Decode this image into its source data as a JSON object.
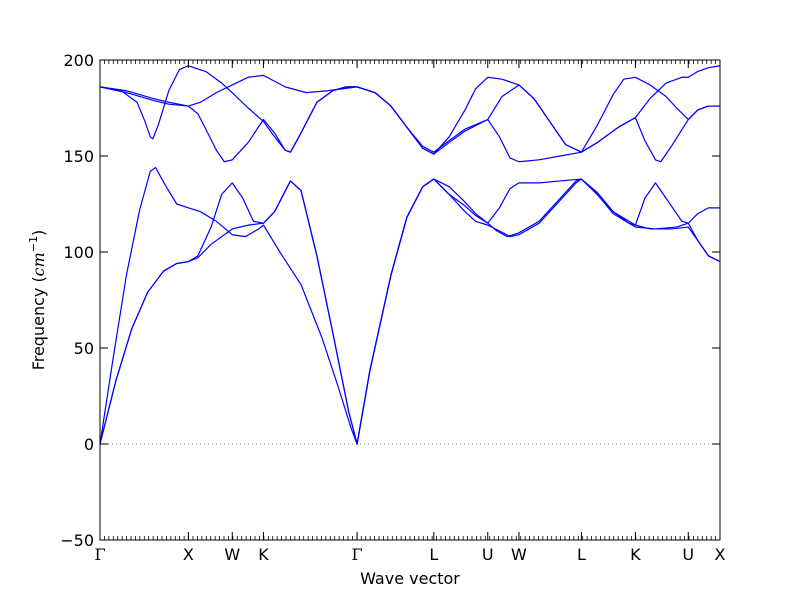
{
  "chart_data": {
    "type": "line",
    "title": "",
    "xlabel": "Wave vector",
    "ylabel_text": "Frequency (",
    "ylabel_unit_base": "cm",
    "ylabel_unit_exp": "−1",
    "ylabel_close": ")",
    "ylim": [
      -50,
      200
    ],
    "yticks": [
      -50,
      0,
      50,
      100,
      150,
      200
    ],
    "ytick_labels": [
      "−50",
      "0",
      "50",
      "100",
      "150",
      "200"
    ],
    "grid": false,
    "zero_line": {
      "y": 0,
      "style": "dotted",
      "color": "#808080"
    },
    "line_color": "#0000ff",
    "x_range": [
      0,
      11.72
    ],
    "high_symmetry_points": [
      {
        "label": "Γ",
        "x": 0.0
      },
      {
        "label": "X",
        "x": 1.67
      },
      {
        "label": "W",
        "x": 2.5
      },
      {
        "label": "K",
        "x": 3.09
      },
      {
        "label": "Γ",
        "x": 4.86
      },
      {
        "label": "L",
        "x": 6.31
      },
      {
        "label": "U",
        "x": 7.33
      },
      {
        "label": "W",
        "x": 7.92
      },
      {
        "label": "L",
        "x": 9.1
      },
      {
        "label": "K",
        "x": 10.12
      },
      {
        "label": "U",
        "x": 11.12
      },
      {
        "label": "X",
        "x": 11.72
      }
    ],
    "minor_tick_count": 140,
    "series": [
      {
        "values": [
          [
            0,
            0
          ],
          [
            0.3,
            33
          ],
          [
            0.6,
            60
          ],
          [
            0.9,
            79
          ],
          [
            1.2,
            90
          ],
          [
            1.45,
            94
          ],
          [
            1.67,
            95
          ],
          [
            1.85,
            97
          ],
          [
            2.1,
            104
          ],
          [
            2.5,
            112
          ],
          [
            2.8,
            114
          ],
          [
            3.09,
            115
          ],
          [
            3.3,
            121
          ],
          [
            3.6,
            137
          ],
          [
            3.8,
            132
          ],
          [
            4.1,
            98
          ],
          [
            4.4,
            58
          ],
          [
            4.7,
            17
          ],
          [
            4.86,
            0
          ],
          [
            5.1,
            38
          ],
          [
            5.5,
            88
          ],
          [
            5.8,
            118
          ],
          [
            6.1,
            134
          ],
          [
            6.31,
            138
          ],
          [
            6.6,
            130
          ],
          [
            6.9,
            124
          ],
          [
            7.1,
            119
          ],
          [
            7.33,
            115
          ],
          [
            7.5,
            111
          ],
          [
            7.7,
            108
          ],
          [
            7.92,
            110
          ],
          [
            8.3,
            116
          ],
          [
            8.7,
            128
          ],
          [
            9.0,
            137
          ],
          [
            9.1,
            138
          ],
          [
            9.4,
            130
          ],
          [
            9.7,
            120
          ],
          [
            10.0,
            115
          ],
          [
            10.12,
            114
          ],
          [
            10.4,
            112
          ],
          [
            10.8,
            112
          ],
          [
            11.12,
            113
          ],
          [
            11.3,
            106
          ],
          [
            11.5,
            98
          ],
          [
            11.72,
            95
          ]
        ]
      },
      {
        "values": [
          [
            0,
            0
          ],
          [
            0.3,
            33
          ],
          [
            0.6,
            60
          ],
          [
            0.9,
            79
          ],
          [
            1.2,
            90
          ],
          [
            1.45,
            94
          ],
          [
            1.67,
            95
          ],
          [
            1.85,
            98
          ],
          [
            2.1,
            113
          ],
          [
            2.3,
            130
          ],
          [
            2.5,
            136
          ],
          [
            2.7,
            128
          ],
          [
            2.9,
            116
          ],
          [
            3.09,
            115
          ],
          [
            3.3,
            121
          ],
          [
            3.6,
            137
          ],
          [
            3.8,
            132
          ],
          [
            4.1,
            98
          ],
          [
            4.4,
            58
          ],
          [
            4.7,
            17
          ],
          [
            4.86,
            0
          ],
          [
            5.1,
            38
          ],
          [
            5.5,
            88
          ],
          [
            5.8,
            118
          ],
          [
            6.1,
            134
          ],
          [
            6.31,
            138
          ],
          [
            6.6,
            134
          ],
          [
            6.9,
            126
          ],
          [
            7.1,
            120
          ],
          [
            7.33,
            115
          ],
          [
            7.55,
            123
          ],
          [
            7.75,
            133
          ],
          [
            7.92,
            136
          ],
          [
            8.3,
            136
          ],
          [
            8.7,
            137
          ],
          [
            9.1,
            138
          ],
          [
            9.4,
            131
          ],
          [
            9.7,
            121
          ],
          [
            10.0,
            116
          ],
          [
            10.12,
            114
          ],
          [
            10.3,
            128
          ],
          [
            10.5,
            136
          ],
          [
            10.7,
            128
          ],
          [
            11.0,
            116
          ],
          [
            11.12,
            115
          ],
          [
            11.3,
            120
          ],
          [
            11.5,
            123
          ],
          [
            11.72,
            123
          ]
        ]
      },
      {
        "values": [
          [
            0,
            0
          ],
          [
            0.25,
            45
          ],
          [
            0.5,
            88
          ],
          [
            0.75,
            122
          ],
          [
            0.95,
            142
          ],
          [
            1.05,
            144
          ],
          [
            1.25,
            134
          ],
          [
            1.45,
            125
          ],
          [
            1.67,
            123
          ],
          [
            1.9,
            121
          ],
          [
            2.2,
            116
          ],
          [
            2.5,
            109
          ],
          [
            2.75,
            108
          ],
          [
            3.0,
            112
          ],
          [
            3.09,
            114
          ],
          [
            3.4,
            100
          ],
          [
            3.8,
            83
          ],
          [
            4.2,
            55
          ],
          [
            4.5,
            30
          ],
          [
            4.75,
            8
          ],
          [
            4.86,
            0
          ],
          [
            5.1,
            38
          ],
          [
            5.5,
            88
          ],
          [
            5.8,
            118
          ],
          [
            6.1,
            134
          ],
          [
            6.31,
            138
          ],
          [
            6.6,
            130
          ],
          [
            6.9,
            121
          ],
          [
            7.1,
            116
          ],
          [
            7.33,
            114
          ],
          [
            7.55,
            111
          ],
          [
            7.75,
            108
          ],
          [
            7.92,
            109
          ],
          [
            8.3,
            115
          ],
          [
            8.7,
            127
          ],
          [
            9.0,
            136
          ],
          [
            9.1,
            138
          ],
          [
            9.4,
            130
          ],
          [
            9.7,
            121
          ],
          [
            10.0,
            115
          ],
          [
            10.12,
            113
          ],
          [
            10.5,
            112
          ],
          [
            10.9,
            113
          ],
          [
            11.12,
            115
          ],
          [
            11.3,
            106
          ],
          [
            11.5,
            98
          ],
          [
            11.72,
            95
          ]
        ]
      },
      {
        "values": [
          [
            0,
            186
          ],
          [
            0.4,
            184
          ],
          [
            0.7,
            178
          ],
          [
            0.85,
            168
          ],
          [
            0.95,
            160
          ],
          [
            1.0,
            159
          ],
          [
            1.1,
            166
          ],
          [
            1.3,
            184
          ],
          [
            1.5,
            195
          ],
          [
            1.67,
            197
          ],
          [
            2.0,
            194
          ],
          [
            2.3,
            188
          ],
          [
            2.5,
            183
          ],
          [
            2.8,
            175
          ],
          [
            3.09,
            168
          ],
          [
            3.3,
            160
          ],
          [
            3.5,
            153
          ],
          [
            3.6,
            152
          ],
          [
            3.8,
            162
          ],
          [
            4.1,
            178
          ],
          [
            4.4,
            184
          ],
          [
            4.65,
            186
          ],
          [
            4.86,
            186
          ],
          [
            5.2,
            183
          ],
          [
            5.5,
            176
          ],
          [
            5.8,
            165
          ],
          [
            6.1,
            154
          ],
          [
            6.31,
            151
          ],
          [
            6.6,
            160
          ],
          [
            6.9,
            174
          ],
          [
            7.1,
            185
          ],
          [
            7.33,
            191
          ],
          [
            7.6,
            190
          ],
          [
            7.92,
            187
          ],
          [
            8.2,
            180
          ],
          [
            8.5,
            168
          ],
          [
            8.8,
            156
          ],
          [
            9.1,
            152
          ],
          [
            9.4,
            166
          ],
          [
            9.7,
            182
          ],
          [
            9.9,
            190
          ],
          [
            10.12,
            191
          ],
          [
            10.4,
            187
          ],
          [
            10.7,
            181
          ],
          [
            10.9,
            175
          ],
          [
            11.12,
            169
          ],
          [
            11.3,
            174
          ],
          [
            11.5,
            176
          ],
          [
            11.72,
            176
          ]
        ]
      },
      {
        "values": [
          [
            0,
            186
          ],
          [
            0.5,
            183
          ],
          [
            1.0,
            179
          ],
          [
            1.3,
            177
          ],
          [
            1.67,
            176
          ],
          [
            1.9,
            178
          ],
          [
            2.2,
            183
          ],
          [
            2.5,
            187
          ],
          [
            2.8,
            191
          ],
          [
            3.09,
            192
          ],
          [
            3.5,
            186
          ],
          [
            3.9,
            183
          ],
          [
            4.3,
            184
          ],
          [
            4.86,
            186
          ],
          [
            5.2,
            183
          ],
          [
            5.5,
            176
          ],
          [
            5.8,
            165
          ],
          [
            6.1,
            155
          ],
          [
            6.31,
            152
          ],
          [
            6.6,
            158
          ],
          [
            6.9,
            164
          ],
          [
            7.33,
            169
          ],
          [
            7.6,
            181
          ],
          [
            7.92,
            187
          ],
          [
            8.2,
            180
          ],
          [
            8.5,
            168
          ],
          [
            8.8,
            156
          ],
          [
            9.1,
            152
          ],
          [
            9.4,
            157
          ],
          [
            9.8,
            165
          ],
          [
            10.12,
            170
          ],
          [
            10.4,
            180
          ],
          [
            10.7,
            188
          ],
          [
            11.0,
            191
          ],
          [
            11.12,
            191
          ],
          [
            11.3,
            194
          ],
          [
            11.5,
            196
          ],
          [
            11.72,
            197
          ]
        ]
      },
      {
        "values": [
          [
            0,
            186
          ],
          [
            0.5,
            184
          ],
          [
            1.0,
            180
          ],
          [
            1.3,
            178
          ],
          [
            1.67,
            176
          ],
          [
            1.85,
            172
          ],
          [
            2.0,
            164
          ],
          [
            2.2,
            153
          ],
          [
            2.35,
            147
          ],
          [
            2.5,
            148
          ],
          [
            2.8,
            157
          ],
          [
            3.09,
            169
          ],
          [
            3.3,
            162
          ],
          [
            3.5,
            153
          ],
          [
            3.6,
            152
          ],
          [
            3.8,
            162
          ],
          [
            4.1,
            178
          ],
          [
            4.4,
            184
          ],
          [
            4.65,
            186
          ],
          [
            4.86,
            186
          ],
          [
            5.2,
            183
          ],
          [
            5.5,
            176
          ],
          [
            5.8,
            165
          ],
          [
            6.1,
            154
          ],
          [
            6.31,
            151
          ],
          [
            6.6,
            157
          ],
          [
            6.9,
            163
          ],
          [
            7.33,
            169
          ],
          [
            7.55,
            160
          ],
          [
            7.75,
            149
          ],
          [
            7.92,
            147
          ],
          [
            8.3,
            148
          ],
          [
            8.7,
            150
          ],
          [
            9.1,
            152
          ],
          [
            9.4,
            157
          ],
          [
            9.8,
            165
          ],
          [
            10.12,
            170
          ],
          [
            10.3,
            158
          ],
          [
            10.5,
            148
          ],
          [
            10.6,
            147
          ],
          [
            10.8,
            155
          ],
          [
            11.12,
            169
          ],
          [
            11.3,
            174
          ],
          [
            11.5,
            176
          ],
          [
            11.72,
            176
          ]
        ]
      }
    ]
  }
}
